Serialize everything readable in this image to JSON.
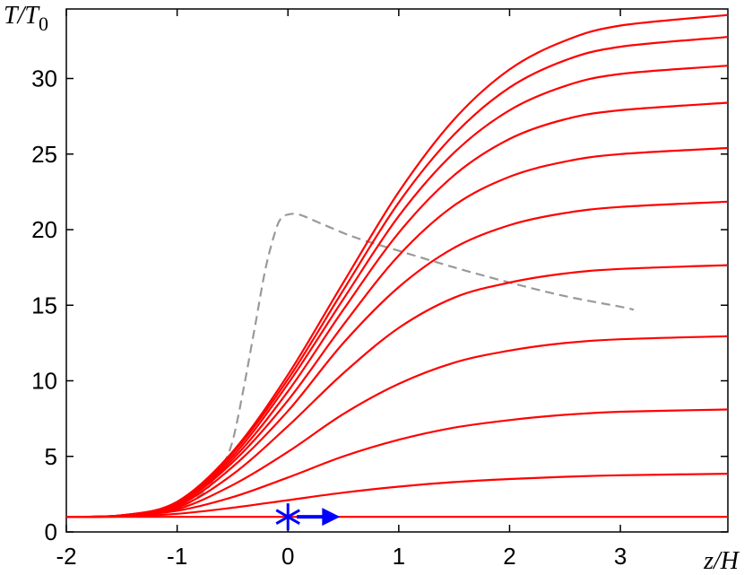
{
  "chart_data": {
    "type": "line",
    "title": "",
    "xlabel": "z/H",
    "ylabel": "T/T0",
    "xlabel_parts": {
      "main": "z/H"
    },
    "ylabel_parts": {
      "main": "T/T",
      "sub": "0"
    },
    "xlim": [
      -2,
      3.97
    ],
    "ylim": [
      0,
      34.6
    ],
    "xticks": [
      "-2",
      "-1",
      "0",
      "1",
      "2",
      "3"
    ],
    "xtick_values": [
      -2,
      -1,
      0,
      1,
      2,
      3
    ],
    "yticks": [
      "0",
      "5",
      "10",
      "15",
      "20",
      "25",
      "30"
    ],
    "ytick_values": [
      0,
      5,
      10,
      15,
      20,
      25,
      30
    ],
    "grid": false,
    "colors": {
      "curves": "#ff0000",
      "dashed": "#999999",
      "marker": "#0000ff"
    },
    "red_curves": [
      {
        "points": [
          [
            -2,
            1
          ],
          [
            3.97,
            1
          ]
        ]
      },
      {
        "points": [
          [
            -2,
            1
          ],
          [
            -1.5,
            1.02
          ],
          [
            -1,
            1.2
          ],
          [
            -0.5,
            1.6
          ],
          [
            0,
            2.1
          ],
          [
            0.5,
            2.6
          ],
          [
            1,
            3.0
          ],
          [
            1.5,
            3.3
          ],
          [
            2,
            3.5
          ],
          [
            2.5,
            3.65
          ],
          [
            3,
            3.75
          ],
          [
            3.97,
            3.85
          ]
        ]
      },
      {
        "points": [
          [
            -2,
            1
          ],
          [
            -1.5,
            1.05
          ],
          [
            -1,
            1.4
          ],
          [
            -0.5,
            2.3
          ],
          [
            0,
            3.6
          ],
          [
            0.5,
            5.0
          ],
          [
            1,
            6.1
          ],
          [
            1.5,
            6.9
          ],
          [
            2,
            7.4
          ],
          [
            2.5,
            7.75
          ],
          [
            3,
            7.95
          ],
          [
            3.97,
            8.1
          ]
        ]
      },
      {
        "points": [
          [
            -2,
            1
          ],
          [
            -1.5,
            1.06
          ],
          [
            -1,
            1.5
          ],
          [
            -0.5,
            3.1
          ],
          [
            0,
            5.3
          ],
          [
            0.5,
            7.8
          ],
          [
            1,
            9.8
          ],
          [
            1.5,
            11.2
          ],
          [
            2,
            12.0
          ],
          [
            2.5,
            12.5
          ],
          [
            3,
            12.75
          ],
          [
            3.97,
            12.95
          ]
        ]
      },
      {
        "points": [
          [
            -2,
            1
          ],
          [
            -1.5,
            1.08
          ],
          [
            -1,
            1.6
          ],
          [
            -0.5,
            3.8
          ],
          [
            0,
            7.0
          ],
          [
            0.5,
            10.5
          ],
          [
            1,
            13.5
          ],
          [
            1.5,
            15.5
          ],
          [
            2,
            16.5
          ],
          [
            2.5,
            17.1
          ],
          [
            3,
            17.4
          ],
          [
            3.97,
            17.65
          ]
        ]
      },
      {
        "points": [
          [
            -2,
            1
          ],
          [
            -1.5,
            1.09
          ],
          [
            -1,
            1.7
          ],
          [
            -0.5,
            4.3
          ],
          [
            0,
            8.0
          ],
          [
            0.5,
            12.5
          ],
          [
            1,
            16.2
          ],
          [
            1.5,
            18.8
          ],
          [
            2,
            20.3
          ],
          [
            2.5,
            21.1
          ],
          [
            3,
            21.5
          ],
          [
            3.97,
            21.85
          ]
        ]
      },
      {
        "points": [
          [
            -2,
            1
          ],
          [
            -1.5,
            1.1
          ],
          [
            -1,
            1.8
          ],
          [
            -0.5,
            4.6
          ],
          [
            0,
            8.7
          ],
          [
            0.5,
            13.7
          ],
          [
            1,
            18.3
          ],
          [
            1.5,
            21.6
          ],
          [
            2,
            23.5
          ],
          [
            2.5,
            24.5
          ],
          [
            3,
            25.0
          ],
          [
            3.97,
            25.4
          ]
        ]
      },
      {
        "points": [
          [
            -2,
            1
          ],
          [
            -1.5,
            1.1
          ],
          [
            -1,
            1.85
          ],
          [
            -0.5,
            4.8
          ],
          [
            0,
            9.3
          ],
          [
            0.5,
            14.7
          ],
          [
            1,
            19.8
          ],
          [
            1.5,
            23.6
          ],
          [
            2,
            26.0
          ],
          [
            2.5,
            27.3
          ],
          [
            3,
            27.9
          ],
          [
            3.97,
            28.4
          ]
        ]
      },
      {
        "points": [
          [
            -2,
            1
          ],
          [
            -1.5,
            1.1
          ],
          [
            -1,
            1.9
          ],
          [
            -0.5,
            5.0
          ],
          [
            0,
            9.8
          ],
          [
            0.5,
            15.4
          ],
          [
            1,
            20.9
          ],
          [
            1.5,
            25.1
          ],
          [
            2,
            27.9
          ],
          [
            2.5,
            29.5
          ],
          [
            3,
            30.3
          ],
          [
            3.97,
            30.85
          ]
        ]
      },
      {
        "points": [
          [
            -2,
            1
          ],
          [
            -1.5,
            1.1
          ],
          [
            -1,
            1.95
          ],
          [
            -0.5,
            5.2
          ],
          [
            0,
            10.1
          ],
          [
            0.5,
            16.0
          ],
          [
            1,
            21.8
          ],
          [
            1.5,
            26.3
          ],
          [
            2,
            29.4
          ],
          [
            2.5,
            31.2
          ],
          [
            3,
            32.1
          ],
          [
            3.97,
            32.75
          ]
        ]
      },
      {
        "points": [
          [
            -2,
            1
          ],
          [
            -1.5,
            1.1
          ],
          [
            -1,
            2.0
          ],
          [
            -0.5,
            5.3
          ],
          [
            0,
            10.4
          ],
          [
            0.5,
            16.5
          ],
          [
            1,
            22.5
          ],
          [
            1.5,
            27.3
          ],
          [
            2,
            30.6
          ],
          [
            2.5,
            32.5
          ],
          [
            3,
            33.5
          ],
          [
            3.97,
            34.2
          ]
        ]
      }
    ],
    "dashed_curve": {
      "points": [
        [
          -1.05,
          1.4
        ],
        [
          -0.9,
          1.9
        ],
        [
          -0.8,
          2.4
        ],
        [
          -0.7,
          3.1
        ],
        [
          -0.6,
          4.2
        ],
        [
          -0.5,
          6.0
        ],
        [
          -0.4,
          9.5
        ],
        [
          -0.3,
          13.5
        ],
        [
          -0.2,
          17.5
        ],
        [
          -0.1,
          20.2
        ],
        [
          -0.05,
          20.8
        ],
        [
          0,
          21.0
        ],
        [
          0.1,
          21.0
        ],
        [
          0.3,
          20.4
        ],
        [
          0.6,
          19.5
        ],
        [
          1,
          18.6
        ],
        [
          1.5,
          17.5
        ],
        [
          2,
          16.5
        ],
        [
          2.5,
          15.6
        ],
        [
          3,
          14.9
        ],
        [
          3.12,
          14.7
        ]
      ]
    },
    "marker": {
      "symbol": "asterisk",
      "x": 0,
      "y": 1
    },
    "arrow": {
      "from": [
        0.08,
        1
      ],
      "to": [
        0.47,
        1
      ]
    }
  }
}
